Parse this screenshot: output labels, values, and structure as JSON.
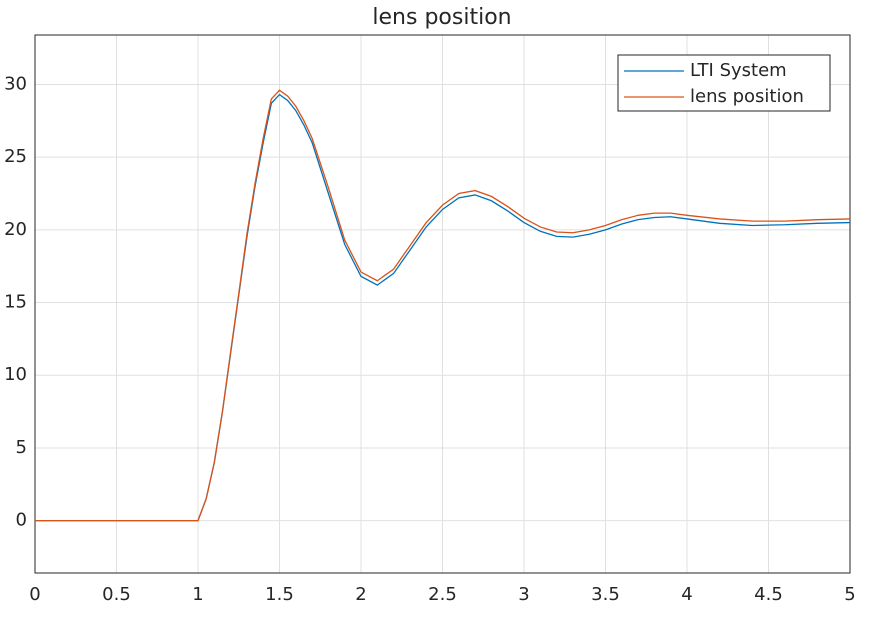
{
  "chart_data": {
    "type": "line",
    "title": "lens position",
    "x": [
      0,
      0.5,
      1.0,
      1.05,
      1.1,
      1.15,
      1.2,
      1.25,
      1.3,
      1.35,
      1.4,
      1.45,
      1.5,
      1.55,
      1.6,
      1.65,
      1.7,
      1.8,
      1.9,
      2.0,
      2.1,
      2.2,
      2.3,
      2.4,
      2.5,
      2.6,
      2.7,
      2.8,
      2.9,
      3.0,
      3.1,
      3.2,
      3.3,
      3.4,
      3.5,
      3.6,
      3.7,
      3.8,
      3.9,
      4.0,
      4.2,
      4.4,
      4.6,
      4.8,
      5.0
    ],
    "series": [
      {
        "name": "LTI System",
        "color": "#0072bd",
        "values": [
          0,
          0,
          0,
          1.5,
          4,
          7.5,
          11.5,
          15.5,
          19.5,
          23,
          26,
          28.7,
          29.3,
          28.9,
          28.2,
          27.2,
          26,
          22.5,
          19,
          16.8,
          16.2,
          17,
          18.6,
          20.2,
          21.4,
          22.2,
          22.4,
          22,
          21.3,
          20.5,
          19.9,
          19.55,
          19.5,
          19.7,
          20,
          20.4,
          20.7,
          20.85,
          20.9,
          20.75,
          20.45,
          20.3,
          20.35,
          20.45,
          20.5
        ]
      },
      {
        "name": "lens position",
        "color": "#d95319",
        "values": [
          0,
          0,
          0,
          1.5,
          4,
          7.5,
          11.6,
          15.6,
          19.7,
          23.2,
          26.3,
          29,
          29.6,
          29.2,
          28.5,
          27.5,
          26.3,
          22.9,
          19.3,
          17.1,
          16.5,
          17.3,
          18.9,
          20.5,
          21.7,
          22.5,
          22.7,
          22.3,
          21.6,
          20.8,
          20.2,
          19.85,
          19.8,
          20,
          20.3,
          20.7,
          21,
          21.15,
          21.15,
          21,
          20.75,
          20.6,
          20.6,
          20.7,
          20.75
        ]
      }
    ],
    "xlim": [
      0,
      5
    ],
    "xticks": [
      0,
      0.5,
      1,
      1.5,
      2,
      2.5,
      3,
      3.5,
      4,
      4.5,
      5
    ],
    "ylim": [
      -3.6,
      33.4
    ],
    "yticks": [
      0,
      5,
      10,
      15,
      20,
      25,
      30
    ],
    "grid": true,
    "legend": "top-right"
  }
}
